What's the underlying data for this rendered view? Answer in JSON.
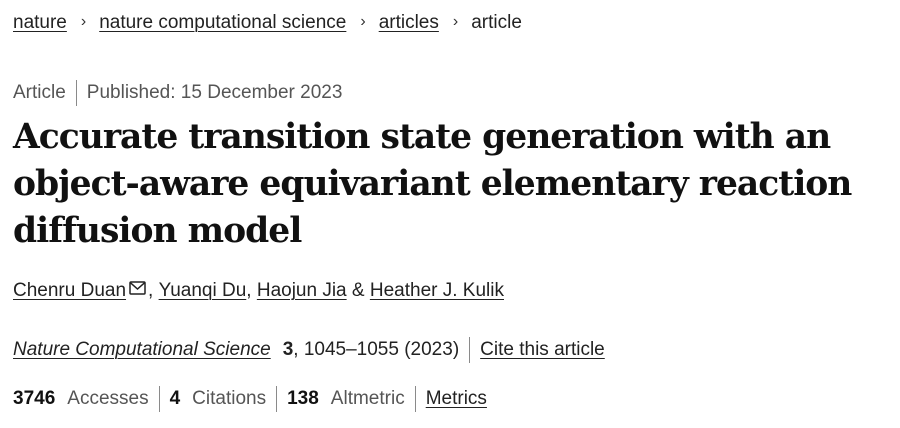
{
  "breadcrumb": {
    "items": [
      "nature",
      "nature computational science",
      "articles"
    ],
    "current": "article",
    "separator": "›"
  },
  "meta": {
    "type": "Article",
    "published": "Published: 15 December 2023"
  },
  "title": "Accurate transition state generation with an object-aware equivariant elementary reaction diffusion model",
  "authors": {
    "list": [
      "Chenru Duan",
      "Yuanqi Du",
      "Haojun Jia",
      "Heather J. Kulik"
    ],
    "sep_comma": ",",
    "sep_and": "&",
    "corresponding_icon": "mail-icon"
  },
  "journal": {
    "name": "Nature Computational Science",
    "volume": "3",
    "pages_year": ", 1045–1055 (2023)",
    "cite_label": "Cite this article"
  },
  "metrics": {
    "accesses_count": "3746",
    "accesses_label": "Accesses",
    "citations_count": "4",
    "citations_label": "Citations",
    "altmetric_count": "138",
    "altmetric_label": "Altmetric",
    "metrics_link": "Metrics"
  },
  "colors": {
    "text": "#222222",
    "muted": "#555555",
    "divider": "#8a8a8a",
    "background": "#ffffff"
  }
}
